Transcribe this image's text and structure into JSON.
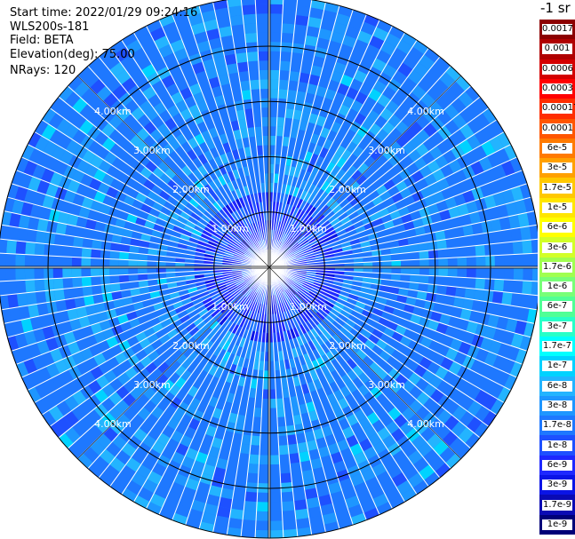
{
  "info": {
    "start_time": "Start time: 2022/01/29 09:24:16",
    "instrument": "WLS200s-181",
    "field": "Field: BETA",
    "elevation": "Elevation(deg): 75.00",
    "nrays": "NRays: 120"
  },
  "unit": "-1 sr",
  "colors": {
    "background": "#ffffff",
    "ring": "#000000",
    "ray_separator": "#ffffff",
    "dominant_blue": "#1e78ff",
    "light_blue": "#23b4ff"
  },
  "chart_data": {
    "type": "ppi",
    "field": "BETA",
    "nrays": 120,
    "elevation_deg": 75.0,
    "max_range_km": 4.9,
    "ring_labels": [
      "1.00km",
      "2.00km",
      "3.00km",
      "4.00km"
    ],
    "ring_ranges_km": [
      1.0,
      2.0,
      3.0,
      4.0
    ],
    "dominant_value_range": [
      "1e-8",
      "1e-7"
    ],
    "colorbar": {
      "labels": [
        "0.0017",
        "0.001",
        "0.0006",
        "0.0003",
        "0.00017",
        "0.0001",
        "6e-5",
        "3e-5",
        "1.7e-5",
        "1e-5",
        "6e-6",
        "3e-6",
        "1.7e-6",
        "1e-6",
        "6e-7",
        "3e-7",
        "1.7e-7",
        "1e-7",
        "6e-8",
        "3e-8",
        "1.7e-8",
        "1e-8",
        "6e-9",
        "3e-9",
        "1.7e-9",
        "1e-9"
      ],
      "colors": [
        "#8c0000",
        "#b00000",
        "#d40000",
        "#ff0000",
        "#ff2d00",
        "#ff5500",
        "#ff7a00",
        "#ffa000",
        "#ffc800",
        "#ffe600",
        "#ffff00",
        "#d2ff28",
        "#a0ff50",
        "#78ff78",
        "#50ff96",
        "#28ffc8",
        "#00ffff",
        "#00d2ff",
        "#23b4ff",
        "#1e96ff",
        "#1e78ff",
        "#1e50ff",
        "#1e28ff",
        "#0a14e6",
        "#0a0ab4",
        "#000078"
      ]
    }
  }
}
